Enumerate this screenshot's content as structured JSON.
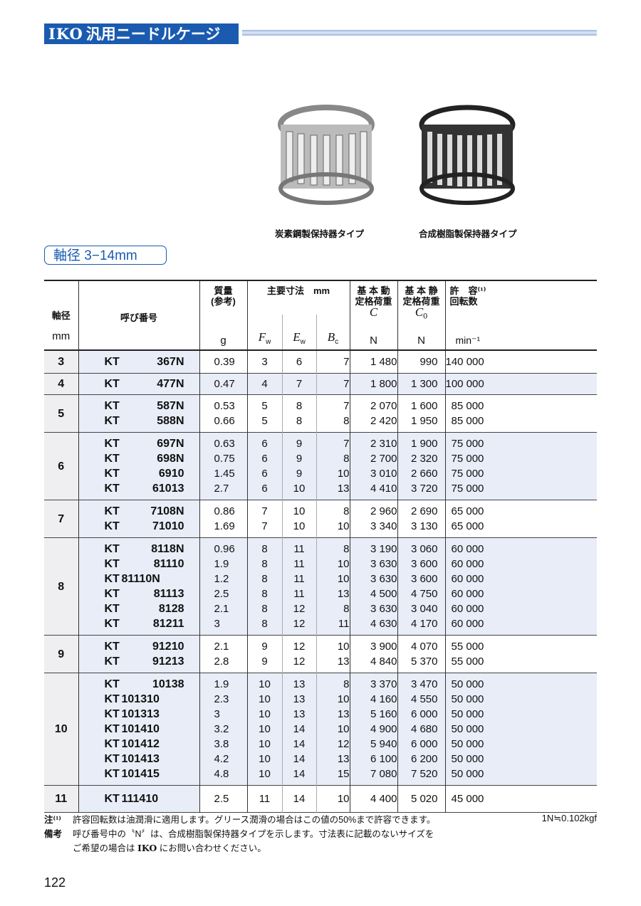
{
  "header": {
    "logo": "IKO",
    "title": "汎用ニードルケージ"
  },
  "photos": [
    {
      "caption": "炭素鋼製保持器タイプ"
    },
    {
      "caption": "合成樹脂製保持器タイプ"
    }
  ],
  "section": "軸径 3−14mm",
  "table": {
    "headers": {
      "shaft": "軸径",
      "shaft_unit": "mm",
      "designation": "呼び番号",
      "mass": "質量\n(参考)",
      "mass_unit": "g",
      "dims": "主要寸法　mm",
      "fw": "F",
      "fw_sub": "w",
      "ew": "E",
      "ew_sub": "w",
      "bc": "B",
      "bc_sub": "c",
      "c": "基 本 動\n定格荷重",
      "c_sym": "C",
      "c_unit": "N",
      "c0": "基 本 静\n定格荷重",
      "c0_sym": "C",
      "c0_sub": "0",
      "c0_unit": "N",
      "speed": "許　容⁽¹⁾\n回転数",
      "speed_unit": "min⁻¹"
    },
    "groups": [
      {
        "shaft": "3",
        "rows": [
          [
            "KT",
            "367N",
            "0.39",
            "3",
            "6",
            "7",
            "1 480",
            "990",
            "140 000"
          ]
        ]
      },
      {
        "shaft": "4",
        "rows": [
          [
            "KT",
            "477N",
            "0.47",
            "4",
            "7",
            "7",
            "1 800",
            "1 300",
            "100 000"
          ]
        ]
      },
      {
        "shaft": "5",
        "rows": [
          [
            "KT",
            "587N",
            "0.53",
            "5",
            "8",
            "7",
            "2 070",
            "1 600",
            "85 000"
          ],
          [
            "KT",
            "588N",
            "0.66",
            "5",
            "8",
            "8",
            "2 420",
            "1 950",
            "85 000"
          ]
        ]
      },
      {
        "shaft": "6",
        "rows": [
          [
            "KT",
            "697N",
            "0.63",
            "6",
            "9",
            "7",
            "2 310",
            "1 900",
            "75 000"
          ],
          [
            "KT",
            "698N",
            "0.75",
            "6",
            "9",
            "8",
            "2 700",
            "2 320",
            "75 000"
          ],
          [
            "KT",
            "6910",
            "1.45",
            "6",
            "9",
            "10",
            "3 010",
            "2 660",
            "75 000"
          ],
          [
            "KT",
            "61013",
            "2.7",
            "6",
            "10",
            "13",
            "4 410",
            "3 720",
            "75 000"
          ]
        ]
      },
      {
        "shaft": "7",
        "rows": [
          [
            "KT",
            "7108N",
            "0.86",
            "7",
            "10",
            "8",
            "2 960",
            "2 690",
            "65 000"
          ],
          [
            "KT",
            "71010",
            "1.69",
            "7",
            "10",
            "10",
            "3 340",
            "3 130",
            "65 000"
          ]
        ]
      },
      {
        "shaft": "8",
        "rows": [
          [
            "KT",
            "8118N",
            "0.96",
            "8",
            "11",
            "8",
            "3 190",
            "3 060",
            "60 000"
          ],
          [
            "KT",
            "81110",
            "1.9",
            "8",
            "11",
            "10",
            "3 630",
            "3 600",
            "60 000"
          ],
          [
            "KT",
            "81110N",
            "1.2",
            "8",
            "11",
            "10",
            "3 630",
            "3 600",
            "60 000"
          ],
          [
            "KT",
            "81113",
            "2.5",
            "8",
            "11",
            "13",
            "4 500",
            "4 750",
            "60 000"
          ],
          [
            "KT",
            "8128",
            "2.1",
            "8",
            "12",
            "8",
            "3 630",
            "3 040",
            "60 000"
          ],
          [
            "KT",
            "81211",
            "3",
            "8",
            "12",
            "11",
            "4 630",
            "4 170",
            "60 000"
          ]
        ]
      },
      {
        "shaft": "9",
        "rows": [
          [
            "KT",
            "91210",
            "2.1",
            "9",
            "12",
            "10",
            "3 900",
            "4 070",
            "55 000"
          ],
          [
            "KT",
            "91213",
            "2.8",
            "9",
            "12",
            "13",
            "4 840",
            "5 370",
            "55 000"
          ]
        ]
      },
      {
        "shaft": "10",
        "rows": [
          [
            "KT",
            "10138",
            "1.9",
            "10",
            "13",
            "8",
            "3 370",
            "3 470",
            "50 000"
          ],
          [
            "KT",
            "101310",
            "2.3",
            "10",
            "13",
            "10",
            "4 160",
            "4 550",
            "50 000"
          ],
          [
            "KT",
            "101313",
            "3",
            "10",
            "13",
            "13",
            "5 160",
            "6 000",
            "50 000"
          ],
          [
            "KT",
            "101410",
            "3.2",
            "10",
            "14",
            "10",
            "4 900",
            "4 680",
            "50 000"
          ],
          [
            "KT",
            "101412",
            "3.8",
            "10",
            "14",
            "12",
            "5 940",
            "6 000",
            "50 000"
          ],
          [
            "KT",
            "101413",
            "4.2",
            "10",
            "14",
            "13",
            "6 100",
            "6 200",
            "50 000"
          ],
          [
            "KT",
            "101415",
            "4.8",
            "10",
            "14",
            "15",
            "7 080",
            "7 520",
            "50 000"
          ]
        ]
      },
      {
        "shaft": "11",
        "rows": [
          [
            "KT",
            "111410",
            "2.5",
            "11",
            "14",
            "10",
            "4 400",
            "5 020",
            "45 000"
          ]
        ]
      }
    ]
  },
  "notes": {
    "note1_label": "注⁽¹⁾",
    "note1": "許容回転数は油潤滑に適用します。グリース潤滑の場合はこの値の50%まで許容できます。",
    "remark_label": "備考",
    "remark1": "呼び番号中の〝N〞は、合成樹脂製保持器タイプを示します。寸法表に記載のないサイズを",
    "remark2_pre": "ご希望の場合は ",
    "remark2_logo": "IKO",
    "remark2_post": " にお問い合わせください。",
    "conversion": "1N≒0.102kgf"
  },
  "page_number": "122",
  "colors": {
    "brand_blue": "#1a5bb0",
    "row_tint": "#e8edf8"
  }
}
